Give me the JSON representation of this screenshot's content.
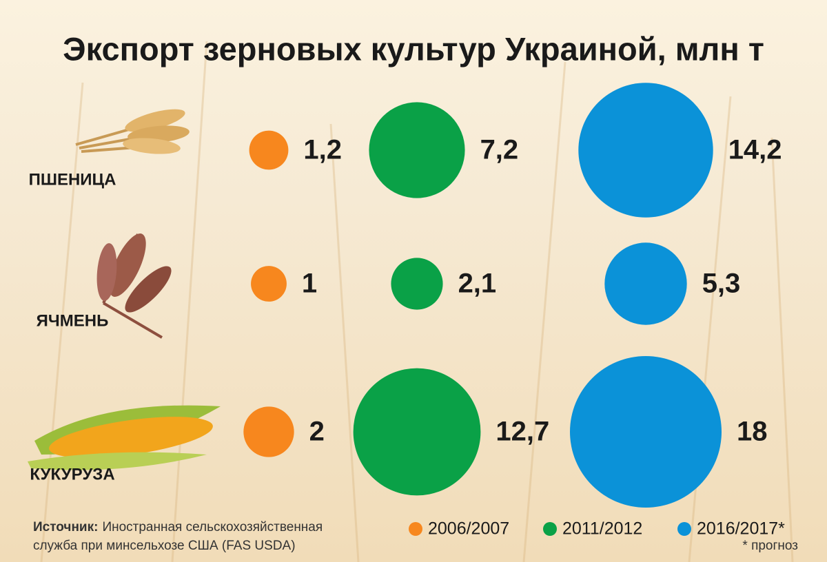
{
  "chart_data": {
    "type": "bubble",
    "title": "Экспорт зерновых культур Украиной, млн т",
    "categories": [
      "ПШЕНИЦА",
      "ЯЧМЕНЬ",
      "КУКУРУЗА"
    ],
    "series": [
      {
        "name": "2006/2007",
        "color": "#f7871e",
        "values": [
          1.2,
          1,
          2
        ],
        "value_labels": [
          "1,2",
          "1",
          "2"
        ]
      },
      {
        "name": "2011/2012",
        "color": "#0aa147",
        "values": [
          7.2,
          2.1,
          12.7
        ],
        "value_labels": [
          "7,2",
          "2,1",
          "12,7"
        ]
      },
      {
        "name": "2016/2017*",
        "color": "#0b92d8",
        "values": [
          14.2,
          5.3,
          18
        ],
        "value_labels": [
          "14,2",
          "5,3",
          "18"
        ]
      }
    ],
    "source_label": "Источник:",
    "source": [
      "Иностранная сельскохозяйственная",
      "служба при минсельхозе США (FAS USDA)"
    ],
    "note": "* прогноз"
  }
}
